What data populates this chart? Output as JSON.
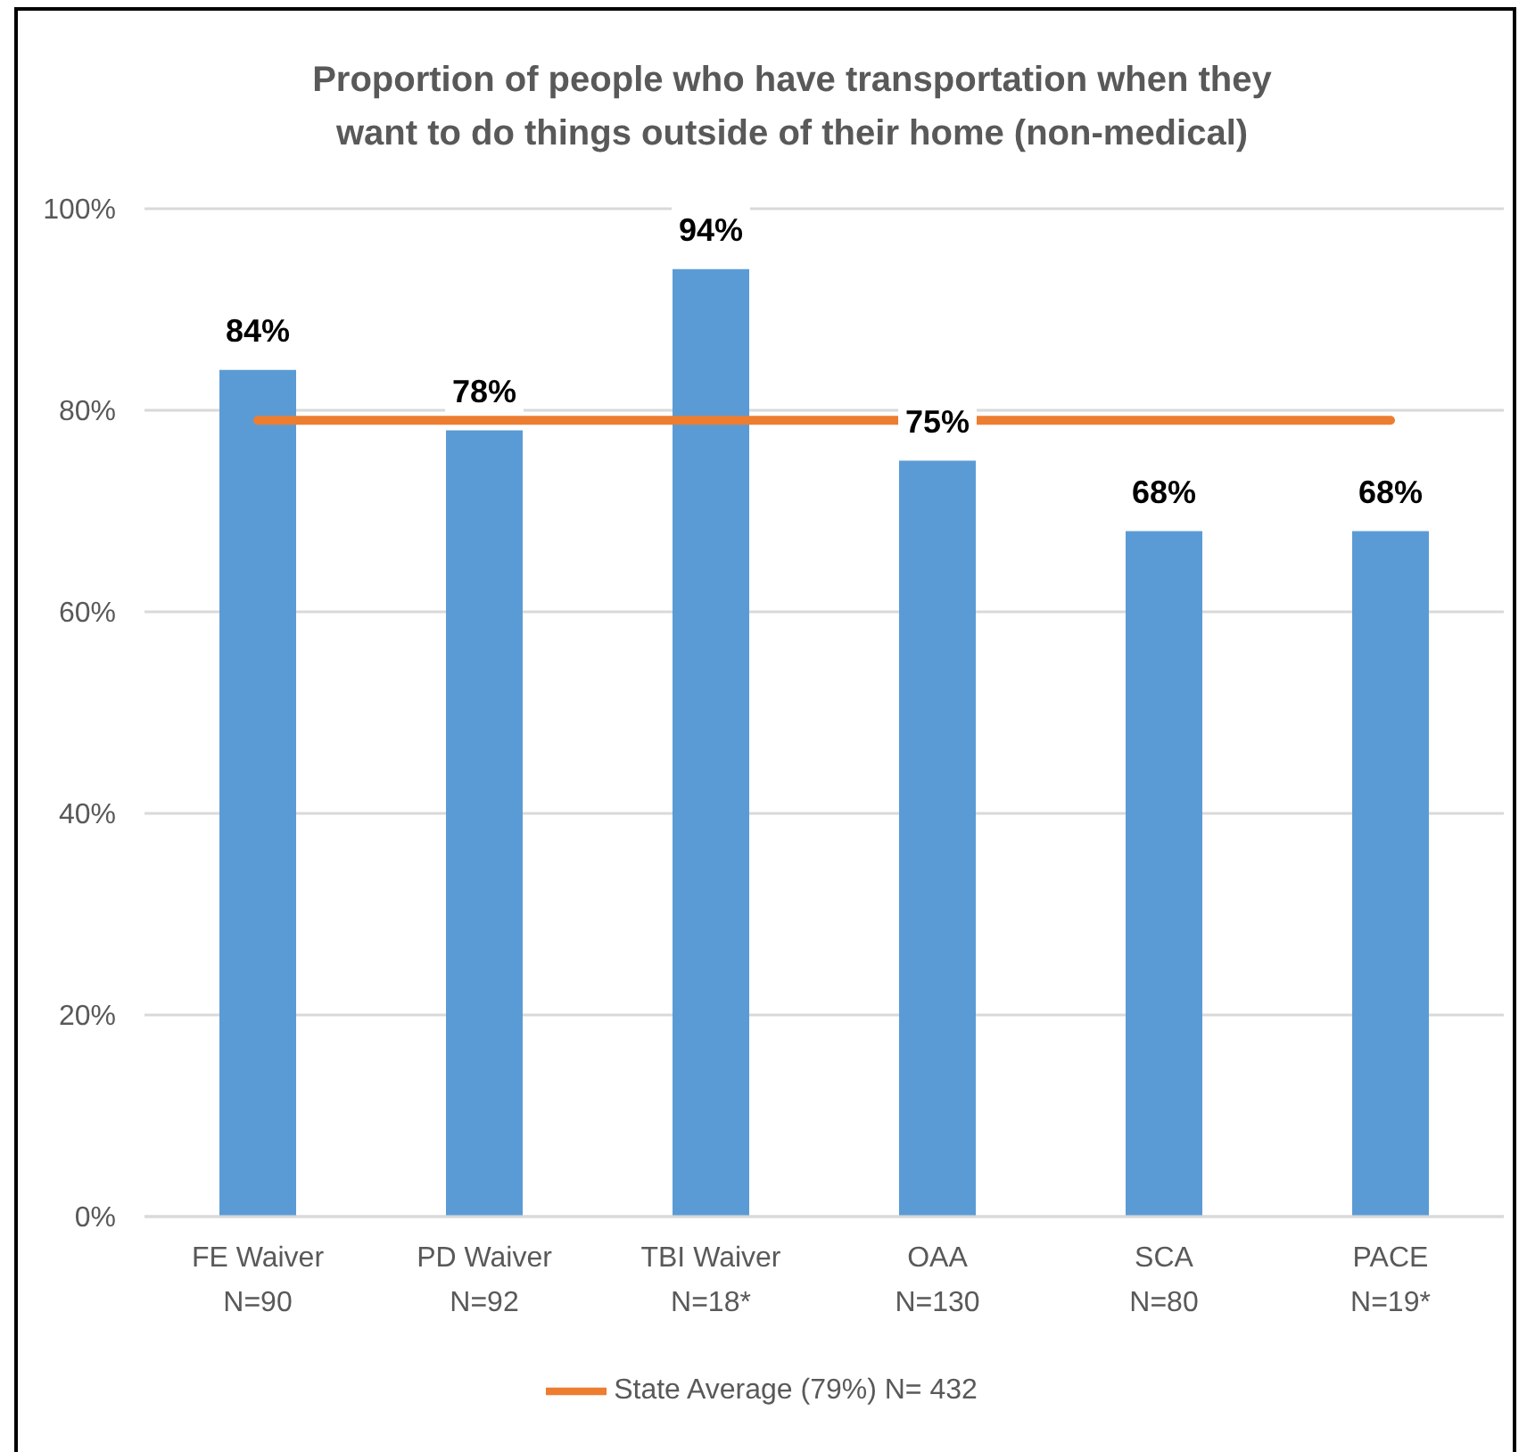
{
  "chart_data": {
    "type": "bar",
    "title": "Proportion of people who have transportation when they want to do things outside of their home (non-medical)",
    "categories": [
      "FE Waiver\nN=90",
      "PD Waiver\nN=92",
      "TBI Waiver\nN=18*",
      "OAA\nN=130",
      "SCA\nN=80",
      "PACE\nN=19*"
    ],
    "series": [
      {
        "color": "#5b9bd5",
        "values": [
          84,
          78,
          94,
          75,
          68,
          68
        ],
        "value_labels": [
          "84%",
          "78%",
          "94%",
          "75%",
          "68%",
          "68%"
        ]
      },
      {
        "type": "line",
        "name": "State Average (79%) N= 432",
        "color": "#ed7d31",
        "values": [
          79,
          79,
          79,
          79,
          79,
          79
        ]
      }
    ],
    "ylim": [
      0,
      100
    ],
    "yticks": [
      {
        "value": 0,
        "label": "0%"
      },
      {
        "value": 20,
        "label": "20%"
      },
      {
        "value": 40,
        "label": "40%"
      },
      {
        "value": 60,
        "label": "60%"
      },
      {
        "value": 80,
        "label": "80%"
      },
      {
        "value": 100,
        "label": "100%"
      }
    ],
    "grid": "y",
    "legend": "bottom",
    "marker": "none"
  }
}
